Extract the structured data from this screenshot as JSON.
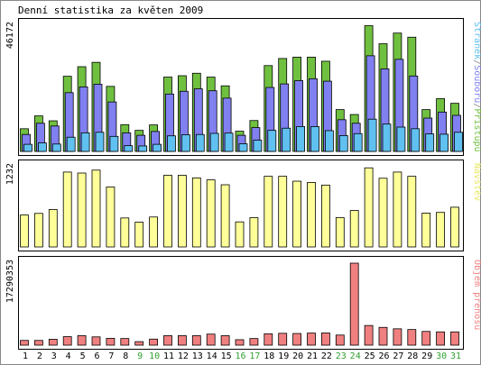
{
  "chart_data": {
    "type": "bar",
    "title": "Denní statistika za květen 2009",
    "categories": [
      "1",
      "2",
      "3",
      "4",
      "5",
      "6",
      "7",
      "8",
      "9",
      "10",
      "11",
      "12",
      "13",
      "14",
      "15",
      "16",
      "17",
      "18",
      "19",
      "20",
      "21",
      "22",
      "23",
      "24",
      "25",
      "26",
      "27",
      "28",
      "29",
      "30",
      "31"
    ],
    "weekend_days": [
      "9",
      "10",
      "16",
      "17",
      "23",
      "24",
      "30",
      "31"
    ],
    "panels": [
      {
        "id": "top",
        "ymax_label": "46172",
        "ylim": [
          0,
          46172
        ],
        "legend_parts": [
          {
            "text": "Stránek",
            "color": "#60c0f0"
          },
          {
            "text": "/",
            "color": "#888888"
          },
          {
            "text": "Souborů",
            "color": "#8080f0"
          },
          {
            "text": "/",
            "color": "#888888"
          },
          {
            "text": "Přístupů",
            "color": "#70c040"
          }
        ],
        "series": [
          {
            "name": "Přístupů",
            "color": "#70c040",
            "values": [
              8300,
              13000,
              11200,
              27500,
              31000,
              32600,
              23800,
              9800,
              7700,
              9700,
              27200,
              27700,
              28600,
              27200,
              24000,
              7400,
              11300,
              31400,
              34000,
              34500,
              34500,
              33000,
              15300,
              13500,
              46000,
              39400,
              43300,
              41800,
              15300,
              19300,
              17600
            ]
          },
          {
            "name": "Souborů",
            "color": "#8080f0",
            "values": [
              6200,
              10300,
              9300,
              21500,
              23600,
              24600,
              18100,
              6800,
              5900,
              7300,
              21000,
              22000,
              22900,
              22200,
              19500,
              5900,
              8700,
              23400,
              24700,
              25900,
              26600,
              25700,
              11600,
              10300,
              35000,
              30200,
              33700,
              27600,
              12200,
              14400,
              13200
            ]
          },
          {
            "name": "Stránek",
            "color": "#60c0f0",
            "values": [
              2600,
              3100,
              2700,
              5200,
              6800,
              7000,
              5500,
              2100,
              2000,
              2600,
              5700,
              6100,
              6200,
              6600,
              6700,
              2800,
              4100,
              7700,
              8500,
              9100,
              9100,
              7600,
              5800,
              6500,
              11800,
              10000,
              8900,
              8300,
              6400,
              6300,
              7000
            ]
          }
        ]
      },
      {
        "id": "mid",
        "ymax_label": "1232",
        "ylim": [
          0,
          1232
        ],
        "legend_parts": [
          {
            "text": "Návštěv",
            "color": "#e8e860"
          }
        ],
        "series": [
          {
            "name": "Návštěv",
            "color": "#ffff99",
            "values": [
              490,
              515,
              575,
              1150,
              1135,
              1180,
              920,
              445,
              380,
              460,
              1100,
              1100,
              1060,
              1030,
              955,
              385,
              450,
              1085,
              1085,
              1010,
              990,
              950,
              450,
              560,
              1215,
              1055,
              1150,
              1085,
              520,
              530,
              610
            ]
          }
        ]
      },
      {
        "id": "bottom",
        "ymax_label": "17290353",
        "ylim": [
          0,
          17290353
        ],
        "legend_parts": [
          {
            "text": "Objem přenosu",
            "color": "#f08080"
          }
        ],
        "series": [
          {
            "name": "Objem přenosu",
            "color": "#f08080",
            "values": [
              1000000,
              1000000,
              1250000,
              1800000,
              2000000,
              1750000,
              1450000,
              1400000,
              740000,
              1280000,
              2000000,
              2000000,
              2000000,
              2330000,
              2000000,
              1150000,
              1400000,
              2400000,
              2500000,
              2460000,
              2550000,
              2580000,
              2130000,
              17290353,
              4150000,
              3750000,
              3450000,
              3300000,
              2900000,
              2800000,
              2800000
            ]
          }
        ]
      }
    ]
  },
  "colors": {
    "weekday_label": "#000000",
    "weekend_label": "#30a030",
    "frame": "#000000",
    "background": "#ffffff"
  }
}
